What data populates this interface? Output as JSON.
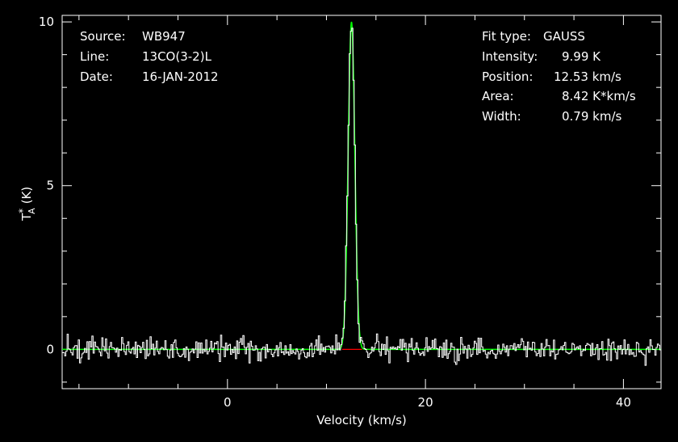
{
  "chart_data": {
    "type": "line",
    "xlabel": "Velocity (km/s)",
    "ylabel": "T",
    "ylabel_sup": "*",
    "ylabel_sub": "A",
    "ylabel_unit": "(K)",
    "xlim": [
      -16.7,
      43.8
    ],
    "ylim": [
      -1.2,
      10.2
    ],
    "x_ticks": [
      0,
      20,
      40
    ],
    "y_ticks": [
      0,
      5,
      10
    ],
    "x_minor_step": 5,
    "y_minor_step": 1,
    "grid": false,
    "colors": {
      "background": "#000000",
      "axes": "#ffffff",
      "spectrum": "#ffffff",
      "fit": "#00ff00",
      "baseline_window": "#ff0000"
    },
    "spectrum": {
      "name": "",
      "channel_width_kms": 0.125,
      "noise_rms_K": 0.18,
      "noise_seed": 947
    },
    "series": [
      {
        "name": "",
        "kind": "gaussian-fit",
        "amplitude": 9.99,
        "center": 12.53,
        "fwhm": 0.79
      }
    ],
    "baseline_window": [
      11.6,
      13.6
    ],
    "info_left": [
      {
        "key": "Source:",
        "value": "WB947"
      },
      {
        "key": "Line:",
        "value": "13CO(3-2)L"
      },
      {
        "key": "Date:",
        "value": "16-JAN-2012"
      }
    ],
    "info_right": [
      {
        "key": "Fit type:",
        "value": "GAUSS"
      },
      {
        "key": "Intensity:",
        "value": "9.99 K"
      },
      {
        "key": "Position:",
        "value": "12.53 km/s"
      },
      {
        "key": "Area:",
        "value": "8.42 K*km/s"
      },
      {
        "key": "Width:",
        "value": "0.79 km/s"
      }
    ]
  }
}
